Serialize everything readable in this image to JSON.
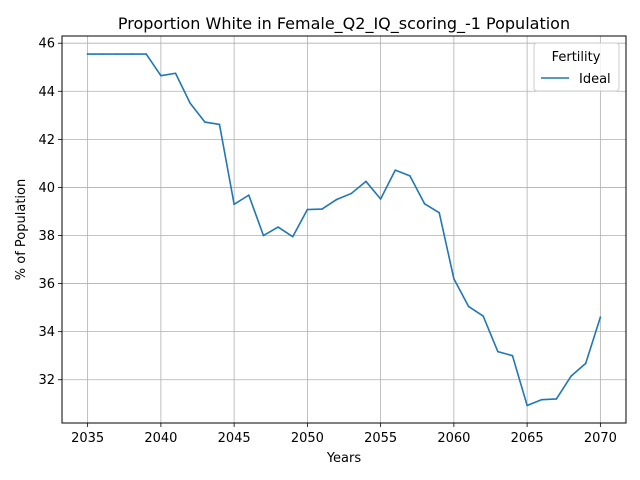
{
  "chart_data": {
    "type": "line",
    "title": "Proportion White in Female_Q2_IQ_scoring_-1 Population",
    "xlabel": "Years",
    "ylabel": "% of Population",
    "xlim": [
      2033.25,
      2071.75
    ],
    "ylim": [
      30.2,
      46.3
    ],
    "x_ticks": [
      2035,
      2040,
      2045,
      2050,
      2055,
      2060,
      2065,
      2070
    ],
    "y_ticks": [
      32,
      34,
      36,
      38,
      40,
      42,
      44,
      46
    ],
    "grid": true,
    "legend": {
      "title": "Fertility",
      "placement": "top-right"
    },
    "series": [
      {
        "name": "Ideal",
        "color": "#1f77b4",
        "x": [
          2035,
          2036,
          2037,
          2038,
          2039,
          2040,
          2041,
          2042,
          2043,
          2044,
          2045,
          2046,
          2047,
          2048,
          2049,
          2050,
          2051,
          2052,
          2053,
          2054,
          2055,
          2056,
          2057,
          2058,
          2059,
          2060,
          2061,
          2062,
          2063,
          2064,
          2065,
          2066,
          2067,
          2068,
          2069,
          2070
        ],
        "y": [
          45.55,
          45.55,
          45.55,
          45.55,
          45.55,
          44.65,
          44.75,
          43.5,
          42.72,
          42.62,
          39.3,
          39.68,
          38.0,
          38.35,
          37.95,
          39.08,
          39.1,
          39.5,
          39.75,
          40.25,
          39.52,
          40.72,
          40.48,
          39.32,
          38.95,
          36.2,
          35.05,
          34.65,
          33.17,
          33.0,
          30.93,
          31.17,
          31.2,
          32.15,
          32.68,
          34.6
        ]
      }
    ]
  }
}
